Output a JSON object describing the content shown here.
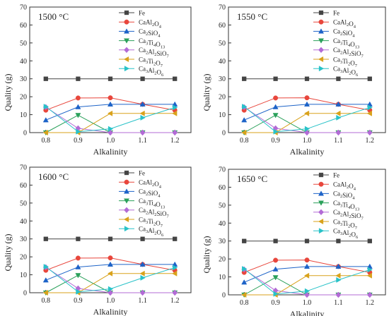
{
  "colors": {
    "Fe": "#444444",
    "CaAl2O4": "#e8463c",
    "Ca2SiO4": "#1d63c8",
    "Ca3Ti4O13": "#2aa05a",
    "Ca2Al2SiO7": "#b36bd6",
    "Ca3Ti2O7": "#d9a21b",
    "Ca3Al2O6": "#28c2c8"
  },
  "chart_data": [
    {
      "type": "line",
      "temperature": "1500 °C",
      "xlabel": "Alkalinity",
      "ylabel": "Quality (g)",
      "x": [
        0.8,
        0.9,
        1.0,
        1.1,
        1.2
      ],
      "xlim": [
        0.75,
        1.25
      ],
      "ylim": [
        0,
        70
      ],
      "yticks": [
        0,
        10,
        20,
        30,
        40,
        50,
        60,
        70
      ],
      "legend_position": "top-right",
      "series": [
        {
          "name": "Fe",
          "marker": "square",
          "values": [
            30,
            30,
            30,
            30,
            30
          ]
        },
        {
          "name": "CaAl2O4",
          "marker": "circle",
          "values": [
            12.5,
            19.3,
            19.4,
            15.8,
            12.5
          ]
        },
        {
          "name": "Ca2SiO4",
          "marker": "triangle-up",
          "values": [
            7,
            14.3,
            15.8,
            15.8,
            15.8
          ]
        },
        {
          "name": "Ca3Ti4O13",
          "marker": "triangle-down",
          "values": [
            0,
            9.7,
            0,
            0,
            0
          ]
        },
        {
          "name": "Ca2Al2SiO7",
          "marker": "diamond",
          "values": [
            14.2,
            2.4,
            0,
            0,
            0
          ]
        },
        {
          "name": "Ca3Ti2O7",
          "marker": "triangle-left",
          "values": [
            0,
            0,
            10.7,
            10.7,
            10.7
          ]
        },
        {
          "name": "Ca3Al2O6",
          "marker": "triangle-right",
          "values": [
            14.5,
            0.5,
            2.1,
            8.3,
            14
          ]
        }
      ]
    },
    {
      "type": "line",
      "temperature": "1550 °C",
      "xlabel": "Alkalinity",
      "ylabel": "Quality (g)",
      "x": [
        0.8,
        0.9,
        1.0,
        1.1,
        1.2
      ],
      "xlim": [
        0.75,
        1.25
      ],
      "ylim": [
        0,
        70
      ],
      "yticks": [
        0,
        10,
        20,
        30,
        40,
        50,
        60,
        70
      ],
      "legend_position": "top-right",
      "series": [
        {
          "name": "Fe",
          "marker": "square",
          "values": [
            30,
            30,
            30,
            30,
            30
          ]
        },
        {
          "name": "CaAl2O4",
          "marker": "circle",
          "values": [
            12.5,
            19.3,
            19.4,
            15.8,
            12.5
          ]
        },
        {
          "name": "Ca2SiO4",
          "marker": "triangle-up",
          "values": [
            7,
            14.3,
            15.8,
            15.8,
            15.8
          ]
        },
        {
          "name": "Ca3Ti4O13",
          "marker": "triangle-down",
          "values": [
            0,
            9.7,
            0,
            0,
            0
          ]
        },
        {
          "name": "Ca2Al2SiO7",
          "marker": "diamond",
          "values": [
            14.2,
            2.4,
            0,
            0,
            0
          ]
        },
        {
          "name": "Ca3Ti2O7",
          "marker": "triangle-left",
          "values": [
            0,
            0,
            10.7,
            10.7,
            10.7
          ]
        },
        {
          "name": "Ca3Al2O6",
          "marker": "triangle-right",
          "values": [
            14.5,
            0.5,
            2.1,
            8.3,
            14
          ]
        }
      ]
    },
    {
      "type": "line",
      "temperature": "1600 °C",
      "xlabel": "Alkalinity",
      "ylabel": "Quality (g)",
      "x": [
        0.8,
        0.9,
        1.0,
        1.1,
        1.2
      ],
      "xlim": [
        0.75,
        1.25
      ],
      "ylim": [
        0,
        70
      ],
      "yticks": [
        0,
        10,
        20,
        30,
        40,
        50,
        60,
        70
      ],
      "legend_position": "top-right",
      "series": [
        {
          "name": "Fe",
          "marker": "square",
          "values": [
            30,
            30,
            30,
            30,
            30
          ]
        },
        {
          "name": "CaAl2O4",
          "marker": "circle",
          "values": [
            12.5,
            19.3,
            19.4,
            15.8,
            12.5
          ]
        },
        {
          "name": "Ca2SiO4",
          "marker": "triangle-up",
          "values": [
            7,
            14.3,
            15.8,
            15.8,
            15.8
          ]
        },
        {
          "name": "Ca3Ti4O13",
          "marker": "triangle-down",
          "values": [
            0,
            9.7,
            0,
            0,
            0
          ]
        },
        {
          "name": "Ca2Al2SiO7",
          "marker": "diamond",
          "values": [
            14.2,
            2.4,
            0,
            0,
            0
          ]
        },
        {
          "name": "Ca3Ti2O7",
          "marker": "triangle-left",
          "values": [
            0,
            0,
            10.7,
            10.7,
            10.7
          ]
        },
        {
          "name": "Ca3Al2O6",
          "marker": "triangle-right",
          "values": [
            14.5,
            0.5,
            2.1,
            8.3,
            14
          ]
        }
      ]
    },
    {
      "type": "line",
      "temperature": "1650 °C",
      "xlabel": "Alkalinity",
      "ylabel": "Quality (g)",
      "x": [
        0.8,
        0.9,
        1.0,
        1.1,
        1.2
      ],
      "xlim": [
        0.75,
        1.25
      ],
      "ylim": [
        0,
        70
      ],
      "yticks": [
        0,
        10,
        20,
        30,
        40,
        50,
        60,
        70
      ],
      "legend_position": "top-right",
      "series": [
        {
          "name": "Fe",
          "marker": "square",
          "values": [
            30,
            30,
            30,
            30,
            30
          ]
        },
        {
          "name": "CaAl2O4",
          "marker": "circle",
          "values": [
            12.5,
            19.3,
            19.4,
            15.8,
            12.5
          ]
        },
        {
          "name": "Ca2SiO4",
          "marker": "triangle-up",
          "values": [
            7,
            14.3,
            15.8,
            15.8,
            15.8
          ]
        },
        {
          "name": "Ca3Ti4O13",
          "marker": "triangle-down",
          "values": [
            0,
            9.7,
            0,
            0,
            0
          ]
        },
        {
          "name": "Ca2Al2SiO7",
          "marker": "diamond",
          "values": [
            14.2,
            2.4,
            0,
            0,
            0
          ]
        },
        {
          "name": "Ca3Ti2O7",
          "marker": "triangle-left",
          "values": [
            0,
            0,
            10.7,
            10.7,
            10.7
          ]
        },
        {
          "name": "Ca3Al2O6",
          "marker": "triangle-right",
          "values": [
            14.5,
            0.5,
            2.1,
            8.3,
            14
          ]
        }
      ]
    }
  ]
}
